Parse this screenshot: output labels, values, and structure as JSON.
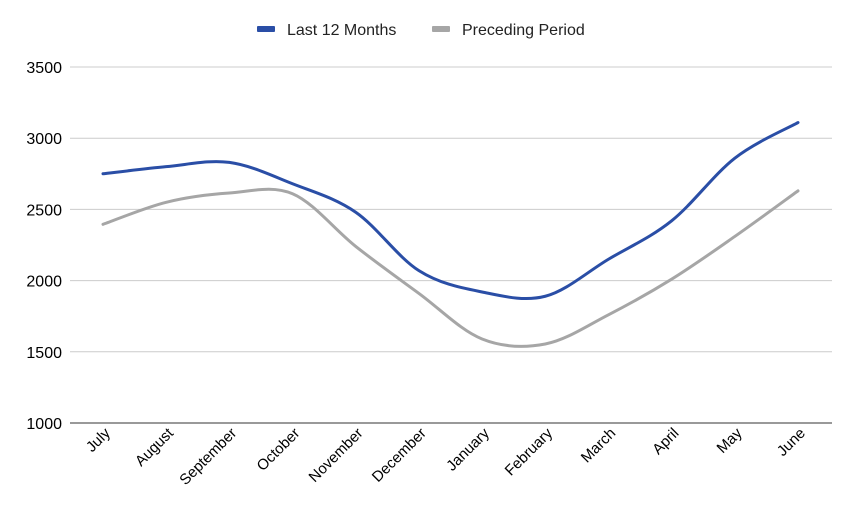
{
  "chart_data": {
    "type": "line",
    "title": "",
    "xlabel": "",
    "ylabel": "",
    "categories": [
      "July",
      "August",
      "September",
      "October",
      "November",
      "December",
      "January",
      "February",
      "March",
      "April",
      "May",
      "June"
    ],
    "series": [
      {
        "name": "Last 12 Months",
        "color": "#2a4ea6",
        "values": [
          2750,
          2800,
          2830,
          2680,
          2480,
          2070,
          1920,
          1890,
          2150,
          2420,
          2860,
          3110
        ]
      },
      {
        "name": "Preceding Period",
        "color": "#a6a6a6",
        "values": [
          2395,
          2550,
          2615,
          2610,
          2240,
          1910,
          1590,
          1555,
          1760,
          2010,
          2310,
          2630
        ]
      }
    ],
    "ylim": [
      1000,
      3500
    ],
    "yticks": [
      "1000",
      "1500",
      "2000",
      "2500",
      "3000",
      "3500"
    ],
    "grid": true,
    "legend_position": "top-center",
    "smooth": true
  }
}
